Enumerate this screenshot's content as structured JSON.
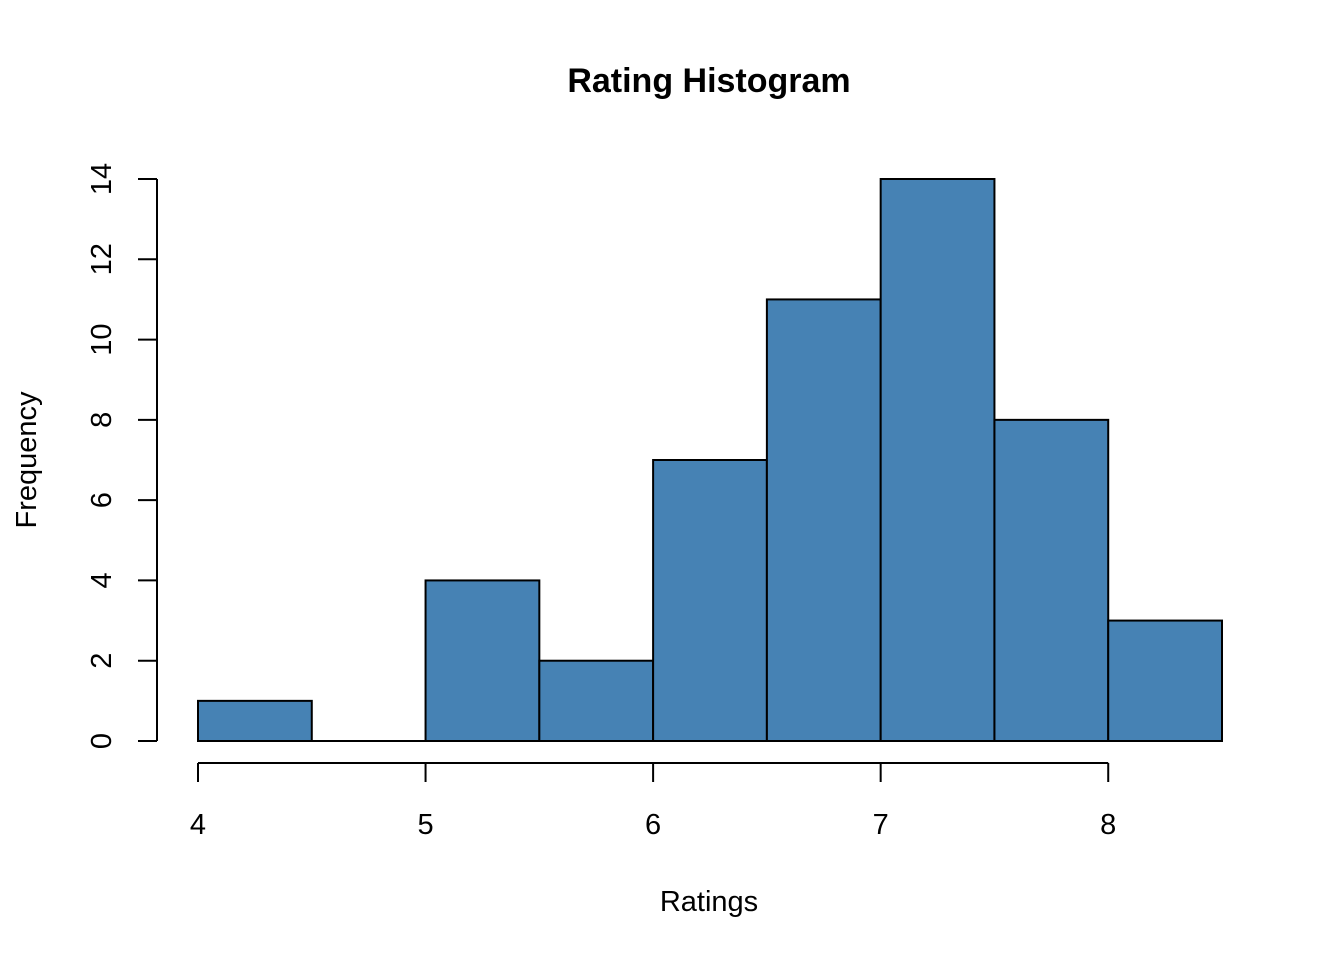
{
  "chart_data": {
    "type": "bar",
    "title": "Rating Histogram",
    "xlabel": "Ratings",
    "ylabel": "Frequency",
    "bins": [
      {
        "start": 4.0,
        "end": 4.5,
        "count": 1
      },
      {
        "start": 4.5,
        "end": 5.0,
        "count": 0
      },
      {
        "start": 5.0,
        "end": 5.5,
        "count": 4
      },
      {
        "start": 5.5,
        "end": 6.0,
        "count": 2
      },
      {
        "start": 6.0,
        "end": 6.5,
        "count": 7
      },
      {
        "start": 6.5,
        "end": 7.0,
        "count": 11
      },
      {
        "start": 7.0,
        "end": 7.5,
        "count": 14
      },
      {
        "start": 7.5,
        "end": 8.0,
        "count": 8
      },
      {
        "start": 8.0,
        "end": 8.5,
        "count": 3
      }
    ],
    "xlim": [
      4,
      8.5
    ],
    "ylim": [
      0,
      14
    ],
    "xticks": [
      "4",
      "5",
      "6",
      "7",
      "8"
    ],
    "yticks": [
      "0",
      "2",
      "4",
      "6",
      "8",
      "10",
      "12",
      "14"
    ],
    "bar_color": "#4682B4",
    "border_color": "#000000",
    "grid": false
  }
}
